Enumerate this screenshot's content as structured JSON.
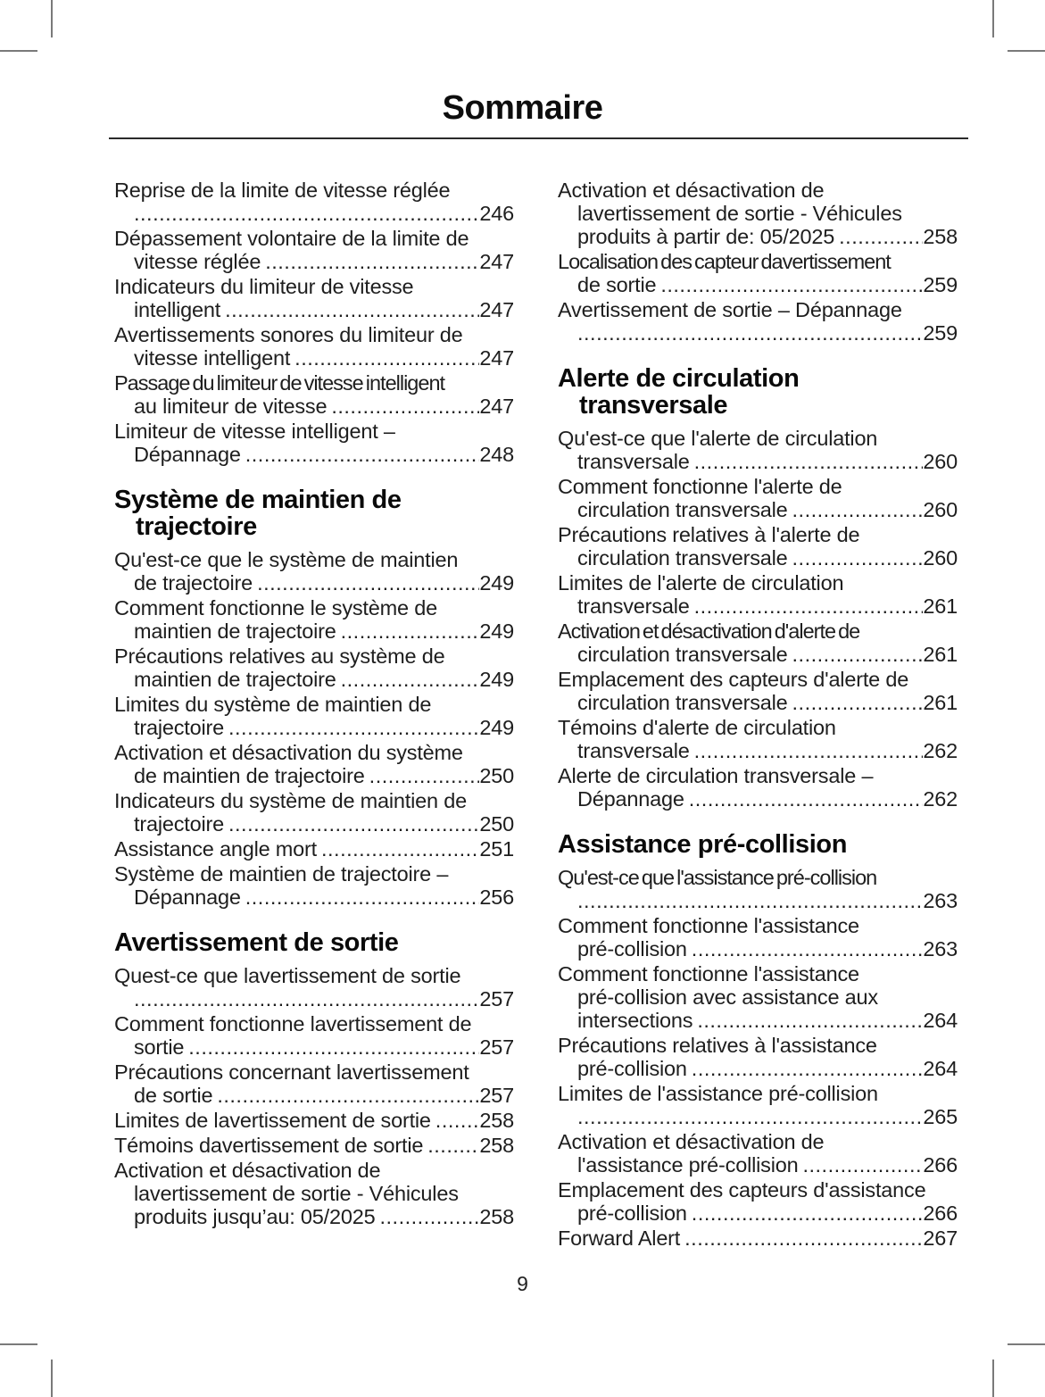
{
  "title": "Sommaire",
  "page_number": "9",
  "columns": [
    {
      "items": [
        {
          "type": "entry",
          "lines": [
            "Reprise de la limite de vitesse réglée"
          ],
          "last": "",
          "page": "246"
        },
        {
          "type": "entry",
          "lines": [
            "Dépassement volontaire de la limite de"
          ],
          "last": "vitesse réglée",
          "page": "247"
        },
        {
          "type": "entry",
          "lines": [
            "Indicateurs du limiteur de vitesse"
          ],
          "last": "intelligent",
          "page": "247"
        },
        {
          "type": "entry",
          "lines": [
            "Avertissements sonores du limiteur de"
          ],
          "last": "vitesse intelligent",
          "page": "247"
        },
        {
          "type": "entry",
          "lines": [
            "Passage du limiteur de vitesse intelligent"
          ],
          "last": "au limiteur de vitesse",
          "page": "247"
        },
        {
          "type": "entry",
          "lines": [
            "Limiteur de vitesse intelligent –"
          ],
          "last": "Dépannage",
          "page": "248"
        },
        {
          "type": "heading",
          "lines": [
            "Système de maintien de",
            "trajectoire"
          ]
        },
        {
          "type": "entry",
          "lines": [
            "Qu'est-ce que le système de maintien"
          ],
          "last": "de trajectoire",
          "page": "249"
        },
        {
          "type": "entry",
          "lines": [
            "Comment fonctionne le système de"
          ],
          "last": "maintien de trajectoire",
          "page": "249"
        },
        {
          "type": "entry",
          "lines": [
            "Précautions relatives au système de"
          ],
          "last": "maintien de trajectoire",
          "page": "249"
        },
        {
          "type": "entry",
          "lines": [
            "Limites du système de maintien de"
          ],
          "last": "trajectoire",
          "page": "249"
        },
        {
          "type": "entry",
          "lines": [
            "Activation et désactivation du système"
          ],
          "last": "de maintien de trajectoire",
          "page": "250"
        },
        {
          "type": "entry",
          "lines": [
            "Indicateurs du système de maintien de"
          ],
          "last": "trajectoire",
          "page": "250"
        },
        {
          "type": "entry",
          "lines": [],
          "last": "Assistance angle mort",
          "page": "251"
        },
        {
          "type": "entry",
          "lines": [
            "Système de maintien de trajectoire –"
          ],
          "last": "Dépannage",
          "page": "256"
        },
        {
          "type": "heading",
          "lines": [
            "Avertissement de sortie"
          ]
        },
        {
          "type": "entry",
          "lines": [
            "Quest-ce que lavertissement de sortie"
          ],
          "last": "",
          "page": "257"
        },
        {
          "type": "entry",
          "lines": [
            "Comment fonctionne lavertissement de"
          ],
          "last": "sortie",
          "page": "257"
        },
        {
          "type": "entry",
          "lines": [
            "Précautions concernant lavertissement"
          ],
          "last": "de sortie",
          "page": "257"
        },
        {
          "type": "entry",
          "lines": [],
          "last": "Limites de lavertissement de sortie",
          "page": "258"
        },
        {
          "type": "entry",
          "lines": [],
          "last": "Témoins davertissement de sortie",
          "page": "258"
        },
        {
          "type": "entry",
          "lines": [
            "Activation et désactivation de",
            "lavertissement de sortie - Véhicules"
          ],
          "last": "produits jusqu’au: 05/2025",
          "page": "258"
        }
      ]
    },
    {
      "items": [
        {
          "type": "entry",
          "lines": [
            "Activation et désactivation de",
            "lavertissement de sortie - Véhicules"
          ],
          "last": "produits à partir de: 05/2025",
          "page": "258"
        },
        {
          "type": "entry",
          "lines": [
            "Localisation des capteur davertissement"
          ],
          "last": "de sortie",
          "page": "259"
        },
        {
          "type": "entry",
          "lines": [
            "Avertissement de sortie – Dépannage"
          ],
          "last": "",
          "page": "259"
        },
        {
          "type": "heading",
          "lines": [
            "Alerte de circulation",
            "transversale"
          ]
        },
        {
          "type": "entry",
          "lines": [
            "Qu'est-ce que l'alerte de circulation"
          ],
          "last": "transversale",
          "page": "260"
        },
        {
          "type": "entry",
          "lines": [
            "Comment fonctionne l'alerte de"
          ],
          "last": "circulation transversale",
          "page": "260"
        },
        {
          "type": "entry",
          "lines": [
            "Précautions relatives à l'alerte de"
          ],
          "last": "circulation transversale",
          "page": "260"
        },
        {
          "type": "entry",
          "lines": [
            "Limites de l'alerte de circulation"
          ],
          "last": "transversale",
          "page": "261"
        },
        {
          "type": "entry",
          "lines": [
            "Activation et désactivation d'alerte de"
          ],
          "last": "circulation transversale",
          "page": "261"
        },
        {
          "type": "entry",
          "lines": [
            "Emplacement des capteurs d'alerte de"
          ],
          "last": "circulation transversale",
          "page": "261"
        },
        {
          "type": "entry",
          "lines": [
            "Témoins d'alerte de circulation"
          ],
          "last": "transversale",
          "page": "262"
        },
        {
          "type": "entry",
          "lines": [
            "Alerte de circulation transversale –"
          ],
          "last": "Dépannage",
          "page": "262"
        },
        {
          "type": "heading",
          "lines": [
            "Assistance pré-collision"
          ]
        },
        {
          "type": "entry",
          "lines": [
            "Qu'est-ce que l'assistance pré-collision"
          ],
          "last": "",
          "page": "263"
        },
        {
          "type": "entry",
          "lines": [
            "Comment fonctionne l'assistance"
          ],
          "last": "pré-collision",
          "page": "263"
        },
        {
          "type": "entry",
          "lines": [
            "Comment fonctionne l'assistance",
            "pré-collision avec assistance aux"
          ],
          "last": "intersections",
          "page": "264"
        },
        {
          "type": "entry",
          "lines": [
            "Précautions relatives à l'assistance"
          ],
          "last": "pré-collision",
          "page": "264"
        },
        {
          "type": "entry",
          "lines": [
            "Limites de l'assistance pré-collision"
          ],
          "last": "",
          "page": "265"
        },
        {
          "type": "entry",
          "lines": [
            "Activation et désactivation de"
          ],
          "last": "l'assistance pré-collision",
          "page": "266"
        },
        {
          "type": "entry",
          "lines": [
            "Emplacement des capteurs d'assistance"
          ],
          "last": "pré-collision",
          "page": "266"
        },
        {
          "type": "entry",
          "lines": [],
          "last": "Forward Alert",
          "page": "267"
        }
      ]
    }
  ]
}
